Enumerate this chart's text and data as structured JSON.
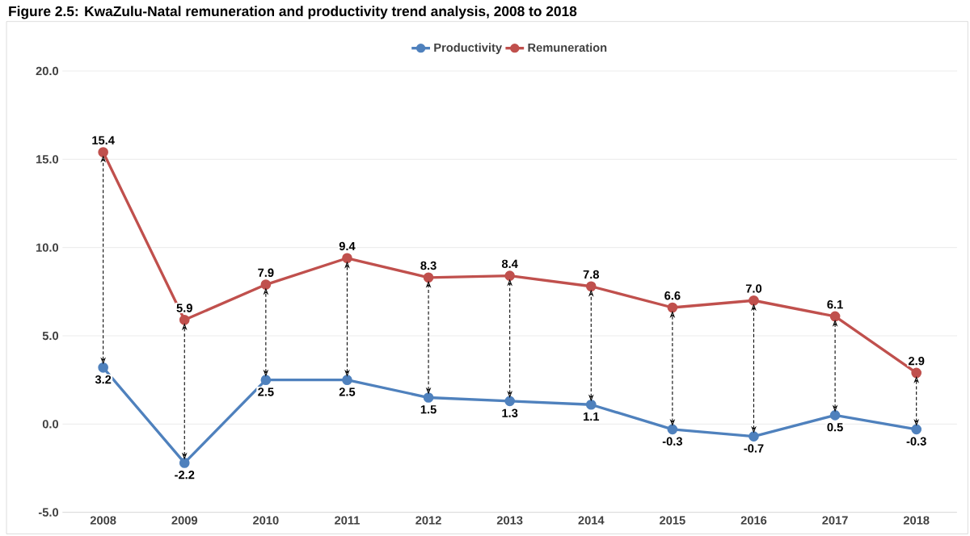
{
  "chart_data": {
    "type": "line",
    "title": "Figure 2.5: KwaZulu-Natal remuneration and productivity trend analysis, 2008 to 2018",
    "categories": [
      "2008",
      "2009",
      "2010",
      "2011",
      "2012",
      "2013",
      "2014",
      "2015",
      "2016",
      "2017",
      "2018"
    ],
    "series": [
      {
        "name": "Productivity",
        "color": "#4f81bd",
        "values": [
          3.2,
          -2.2,
          2.5,
          2.5,
          1.5,
          1.3,
          1.1,
          -0.3,
          -0.7,
          0.5,
          -0.3
        ],
        "value_labels": [
          "3.2",
          "-2.2",
          "2.5",
          "2.5",
          "1.5",
          "1.3",
          "1.1",
          "-0.3",
          "-0.7",
          "0.5",
          "-0.3"
        ]
      },
      {
        "name": "Remuneration",
        "color": "#c0504d",
        "values": [
          15.4,
          5.9,
          7.9,
          9.4,
          8.3,
          8.4,
          7.8,
          6.6,
          7.0,
          6.1,
          2.9
        ],
        "value_labels": [
          "15.4",
          "5.9",
          "7.9",
          "9.4",
          "8.3",
          "8.4",
          "7.8",
          "6.6",
          "7.0",
          "6.1",
          "2.9"
        ]
      }
    ],
    "ylim": [
      -5,
      20
    ],
    "yticks": [
      {
        "value": -5,
        "label": "-5.0"
      },
      {
        "value": 0,
        "label": "0.0"
      },
      {
        "value": 5,
        "label": "5.0"
      },
      {
        "value": 10,
        "label": "10.0"
      },
      {
        "value": 15,
        "label": "15.0"
      },
      {
        "value": 20,
        "label": "20.0"
      }
    ],
    "grid": "y",
    "legend": "top",
    "marker": "circle",
    "line_style": "solid"
  }
}
